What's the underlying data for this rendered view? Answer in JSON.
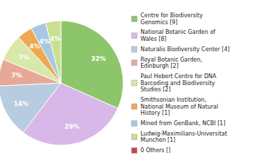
{
  "chart_data": {
    "type": "pie",
    "categories": [
      "Centre for Biodiversity\nGenomics [9]",
      "National Botanic Garden of\nWales [8]",
      "Naturalis Biodiversity Center [4]",
      "Royal Botanic Garden,\nEdinburgh [2]",
      "Paul Hebert Centre for DNA\nBarcoding and Biodiversity\nStudies [2]",
      "Smithsonian Institution,\nNational Museum of Natural\nHistory [1]",
      "Mined from GenBank, NCBI [1]",
      "Ludwig-Maximilians-Universitat\nMunchen [1]",
      "0 Others []"
    ],
    "values": [
      32,
      29,
      14,
      7,
      7,
      4,
      4,
      4,
      0
    ],
    "value_labels": [
      "32%",
      "29%",
      "14%",
      "7%",
      "7%",
      "4%",
      "4%",
      "4%",
      null
    ],
    "colors": [
      "#8dc66a",
      "#d8b8e8",
      "#b8cce0",
      "#e8a898",
      "#d8e8a8",
      "#f0a850",
      "#a8c8e0",
      "#c8e090",
      "#cc4444"
    ],
    "data_labels": true,
    "legend": "right"
  }
}
